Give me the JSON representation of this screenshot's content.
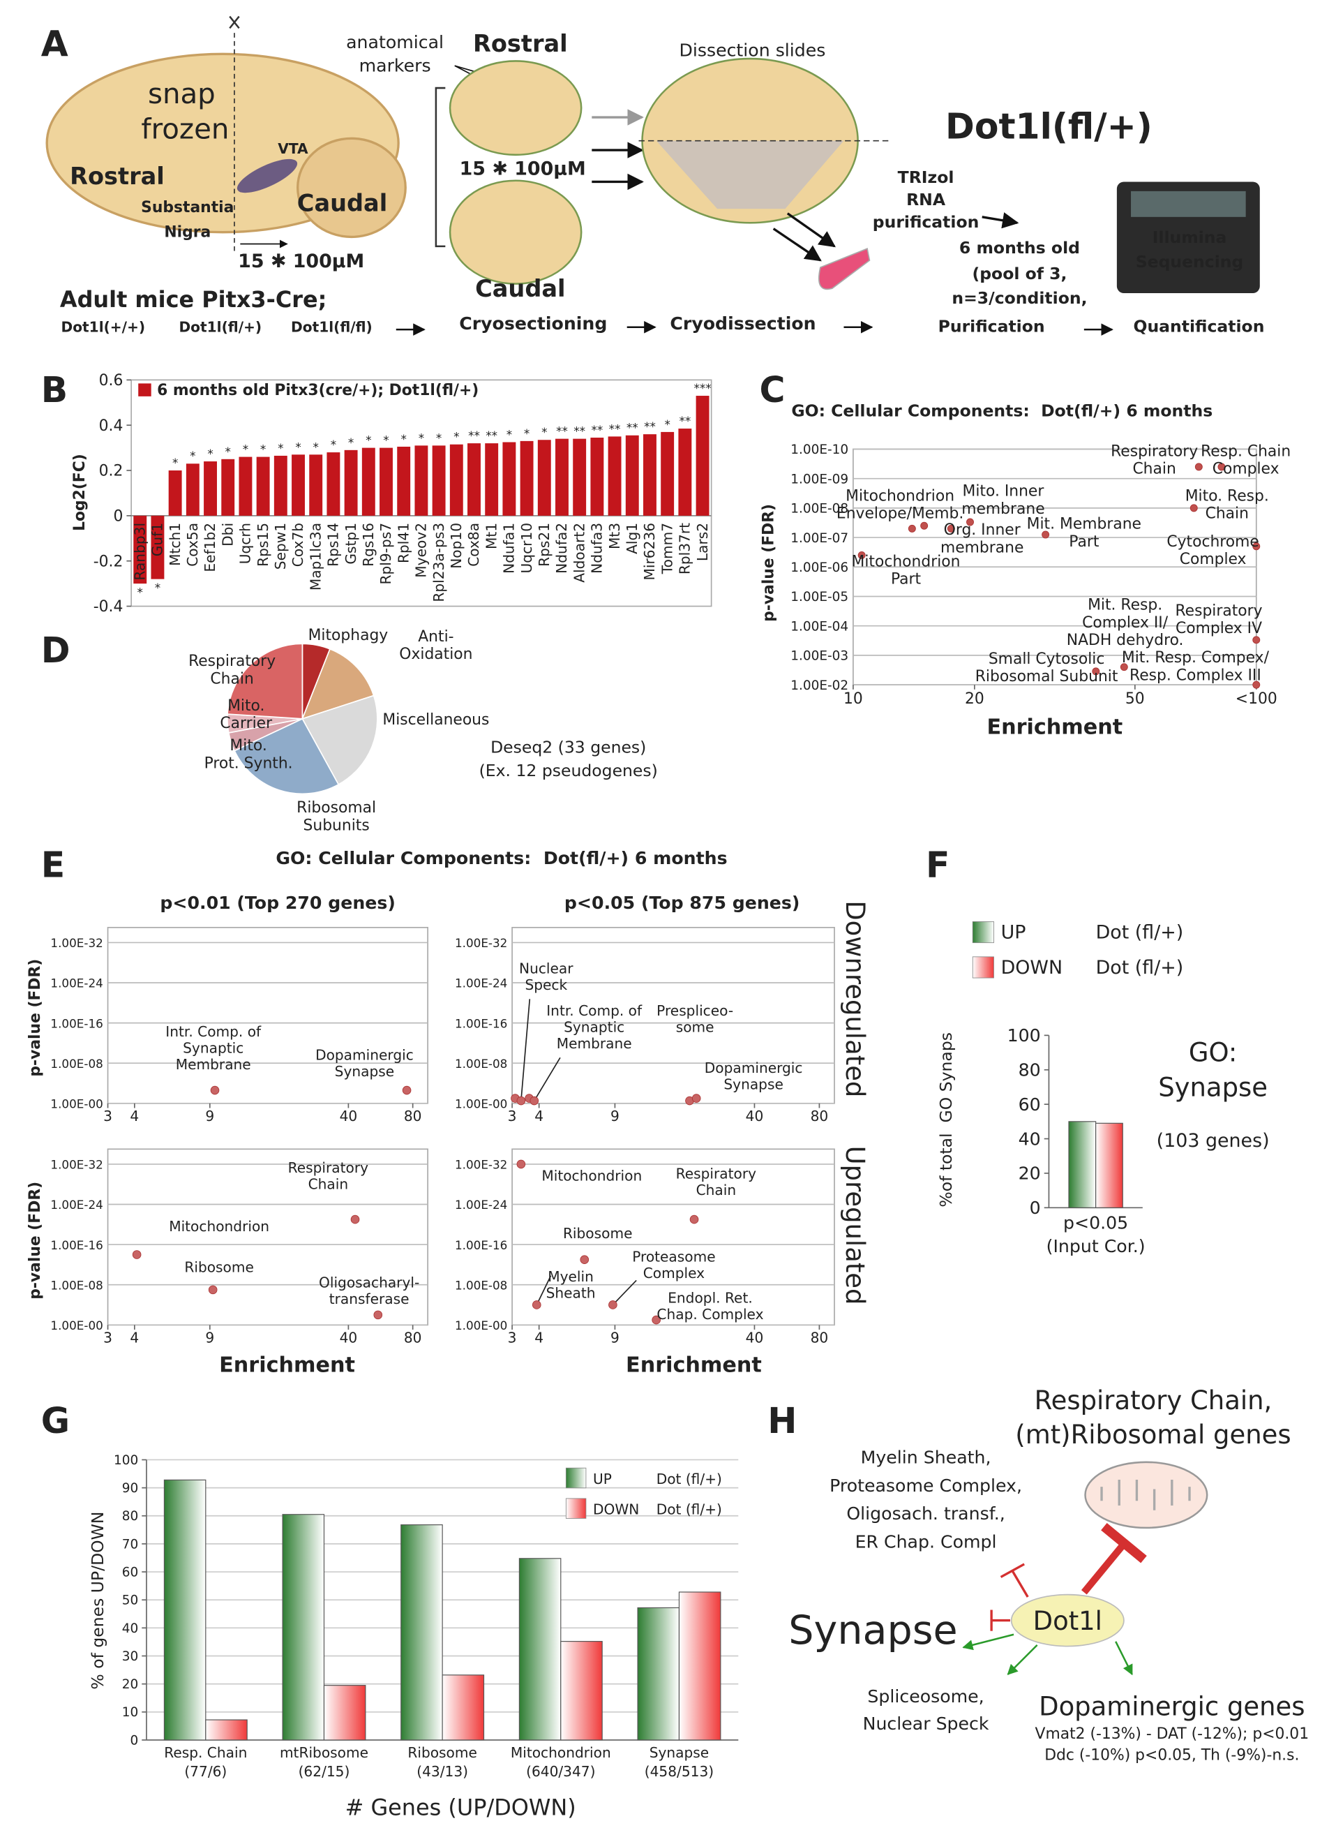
{
  "figure": {
    "panel_labels": [
      "A",
      "B",
      "C",
      "D",
      "E",
      "F",
      "G",
      "H"
    ],
    "panel_a": [
      "snap",
      "frozen",
      "Rostral",
      "VTA",
      "Caudal",
      "Substantia",
      "Nigra",
      "15 ✱ 100μM",
      "anatomical",
      "markers",
      "Rostral",
      "15 ✱ 100μM",
      "Caudal",
      "Dissection slides",
      "Dot1l(fl/+)",
      "TRIzol",
      "RNA",
      "purification",
      "6 months old",
      "(pool of 3,",
      "n=3/condition,",
      "Illumina",
      "Sequencing",
      "Adult mice Pitx3-Cre;",
      "Dot1l(+/+)",
      "Dot1l(fl/+)",
      "Dot1l(fl/fl)",
      "Cryosectioning",
      "Cryodissection",
      "Purification",
      "Quantification"
    ],
    "panel_e": {
      "title": "GO: Cellular Components:  Dot(fl/+) 6 months",
      "column_heads": [
        "p<0.01 (Top 270 genes)",
        "p<0.05 (Top 875 genes)"
      ],
      "row_labels": [
        "Downregulated",
        "Upregulated"
      ]
    },
    "panel_f": [
      "GO:",
      "Synapse",
      "(103 genes)"
    ],
    "panel_h": [
      "Respiratory Chain,",
      "(mt)Ribosomal genes",
      "Myelin Sheath,",
      "Proteasome Complex,",
      "Oligosach. transf.,",
      "ER Chap. Compl",
      "Dot1l",
      "Synapse",
      "Spliceosome,",
      "Nuclear Speck",
      "Dopaminergic genes",
      "Vmat2 (-13%) - DAT (-12%); p<0.01",
      "Ddc (-10%) p<0.05, Th (-9%)-n.s."
    ]
  },
  "chart_data": [
    {
      "type": "bar",
      "ylabel": "Log2(FC)",
      "categories": [
        "Ranbp3l",
        "Guf1",
        "Mtch1",
        "Cox5a",
        "Eef1b2",
        "Dbi",
        "Uqcrh",
        "Rps15",
        "Sepw1",
        "Cox7b",
        "Map1lc3a",
        "Rps14",
        "Gstp1",
        "Rgs16",
        "Rpl9-ps7",
        "Rpl41",
        "Myeov2",
        "Rpl23a-ps3",
        "Nop10",
        "Cox8a",
        "Mt1",
        "Ndufa1",
        "Uqcr10",
        "Rps21",
        "Ndufa2",
        "Aldoart2",
        "Ndufa3",
        "Mt3",
        "Alg1",
        "Mir6236",
        "Tomm7",
        "Rpl37rt",
        "Lars2"
      ],
      "series": [
        {
          "name": "6 months old Pitx3(cre/+); Dot1l(fl/+)",
          "color": "#c3161c",
          "values": [
            -0.3,
            -0.28,
            0.2,
            0.23,
            0.24,
            0.25,
            0.26,
            0.26,
            0.265,
            0.27,
            0.27,
            0.28,
            0.29,
            0.3,
            0.3,
            0.305,
            0.31,
            0.31,
            0.315,
            0.32,
            0.32,
            0.325,
            0.33,
            0.335,
            0.34,
            0.34,
            0.345,
            0.35,
            0.355,
            0.36,
            0.37,
            0.385,
            0.53
          ]
        }
      ],
      "significance": [
        "*",
        "*",
        "*",
        "*",
        "*",
        "*",
        "*",
        "*",
        "*",
        "*",
        "*",
        "*",
        "*",
        "*",
        "*",
        "*",
        "*",
        "*",
        "*",
        "**",
        "**",
        "*",
        "*",
        "*",
        "**",
        "**",
        "**",
        "**",
        "**",
        "**",
        "*",
        "**",
        "***"
      ],
      "ylim": [
        -0.4,
        0.6
      ],
      "yticks": [
        -0.4,
        -0.2,
        0,
        0.2,
        0.4,
        0.6
      ]
    },
    {
      "type": "scatter",
      "title": "GO: Cellular Components:  Dot(fl/+) 6 months",
      "xlabel": "Enrichment",
      "ylabel": "p-value (FDR)",
      "xscale": "log",
      "yscale": "log",
      "color": "#c0504d",
      "grid": true,
      "x": [
        10.5,
        14,
        15,
        17.5,
        19.5,
        30,
        72,
        82,
        70,
        100,
        100,
        47,
        40,
        100
      ],
      "values": [
        4e-07,
        5e-08,
        4e-08,
        5e-08,
        3e-08,
        8e-08,
        4e-10,
        4e-10,
        1e-08,
        2e-07,
        0.0003,
        0.0025,
        0.0035,
        0.01
      ],
      "point_labels": [
        [
          "Mitochondrion",
          "Part"
        ],
        [
          "Mitochondrion",
          "Envelope/Memb."
        ],
        null,
        [
          "Org. Inner",
          "membrane"
        ],
        [
          "Mito. Inner",
          "membrane"
        ],
        [
          "Mit. Membrane",
          "Part"
        ],
        [
          "Respiratory",
          "Chain"
        ],
        [
          "Resp. Chain",
          "Complex"
        ],
        [
          "Mito. Resp.",
          "Chain"
        ],
        [
          "Cytochrome",
          "Complex"
        ],
        [
          "Respiratory",
          "Complex IV"
        ],
        [
          "Mit. Resp.",
          "Complex II/",
          "NADH dehydro."
        ],
        [
          "Small Cytosolic",
          "Ribosomal Subunit"
        ],
        [
          "Mit. Resp. Compex/",
          "Resp. Complex III"
        ]
      ],
      "xlim": [
        10,
        100
      ],
      "xticks": [
        10,
        20,
        50,
        {
          "value": 100,
          "label": "<100"
        }
      ],
      "ylim": [
        0.01,
        1e-10
      ],
      "yticks": [
        {
          "value": 1e-10,
          "label": "1.00E-10"
        },
        {
          "value": 1e-09,
          "label": "1.00E-09"
        },
        {
          "value": 1e-08,
          "label": "1.00E-08"
        },
        {
          "value": 1e-07,
          "label": "1.00E-07"
        },
        {
          "value": 1e-06,
          "label": "1.00E-06"
        },
        {
          "value": 1e-05,
          "label": "1.00E-05"
        },
        {
          "value": 0.0001,
          "label": "1.00E-04"
        },
        {
          "value": 0.001,
          "label": "1.00E-03"
        },
        {
          "value": 0.01,
          "label": "1.00E-02"
        }
      ]
    },
    {
      "type": "pie",
      "categories": [
        [
          "Mitophagy"
        ],
        [
          "Anti-",
          "Oxidation"
        ],
        [
          "Miscellaneous"
        ],
        [
          "Ribosomal",
          "Subunits"
        ],
        [
          "Mito.",
          "Prot. Synth."
        ],
        [
          "Mito.",
          "Carrier"
        ],
        [
          "Respiratory",
          "Chain"
        ]
      ],
      "values": [
        6,
        14,
        22,
        26,
        4,
        4,
        24
      ],
      "colors": [
        "#b52a2a",
        "#d9a87c",
        "#dadada",
        "#8fabc9",
        "#d8a2aa",
        "#e6b8be",
        "#d96464"
      ],
      "notes": [
        "Deseq2 (33 genes)",
        "(Ex. 12 pseudogenes)"
      ]
    },
    {
      "type": "scatter",
      "ylabel": "p-value (FDR)",
      "xscale": "log",
      "yscale": "log",
      "color": "#c86464",
      "grid": true,
      "x": [
        9.5,
        75
      ],
      "values": [
        0.0025,
        0.0025
      ],
      "point_labels": [
        [
          "Intr. Comp. of",
          "Synaptic",
          "Membrane"
        ],
        [
          "Dopaminergic",
          "Synapse"
        ]
      ],
      "xlim": [
        3,
        94
      ],
      "xticks": [
        3,
        4,
        9,
        40,
        80
      ],
      "ylim": [
        1,
        1e-35
      ],
      "yticks": [
        {
          "value": 1e-32,
          "label": "1.00E-32"
        },
        {
          "value": 1e-24,
          "label": "1.00E-24"
        },
        {
          "value": 1e-16,
          "label": "1.00E-16"
        },
        {
          "value": 1e-08,
          "label": "1.00E-08"
        },
        {
          "value": 1,
          "label": "1.00E-00"
        }
      ]
    },
    {
      "type": "scatter",
      "xscale": "log",
      "yscale": "log",
      "color": "#c86464",
      "grid": true,
      "x": [
        3.1,
        3.3,
        3.6,
        3.8,
        20,
        21.5
      ],
      "values": [
        0.1,
        0.3,
        0.1,
        0.3,
        0.3,
        0.1
      ],
      "point_labels": [
        null,
        [
          "Nuclear",
          "Speck"
        ],
        null,
        [
          "Intr. Comp. of",
          "Synaptic",
          "Membrane"
        ],
        [
          "Prespliceo-",
          "some"
        ],
        [
          "Dopaminergic",
          "Synapse"
        ]
      ],
      "xlim": [
        3,
        94
      ],
      "xticks": [
        3,
        4,
        9,
        40,
        80
      ],
      "ylim": [
        1,
        1e-35
      ],
      "yticks": [
        {
          "value": 1e-32,
          "label": "1.00E-32"
        },
        {
          "value": 1e-24,
          "label": "1.00E-24"
        },
        {
          "value": 1e-16,
          "label": "1.00E-16"
        },
        {
          "value": 1e-08,
          "label": "1.00E-08"
        },
        {
          "value": 1,
          "label": "1.00E-00"
        }
      ]
    },
    {
      "type": "scatter",
      "ylabel": "p-value (FDR)",
      "xlabel": "Enrichment",
      "xscale": "log",
      "yscale": "log",
      "color": "#c86464",
      "grid": true,
      "x": [
        4.1,
        9.3,
        43,
        55
      ],
      "values": [
        1e-14,
        1e-07,
        1e-21,
        0.01
      ],
      "point_labels": [
        [
          "Mitochondrion"
        ],
        [
          "Ribosome"
        ],
        [
          "Respiratory",
          "Chain"
        ],
        [
          "Oligosacharyl-",
          "transferase"
        ]
      ],
      "xlim": [
        3,
        94
      ],
      "xticks": [
        3,
        4,
        9,
        40,
        80
      ],
      "ylim": [
        1,
        1e-35
      ],
      "yticks": [
        {
          "value": 1e-32,
          "label": "1.00E-32"
        },
        {
          "value": 1e-24,
          "label": "1.00E-24"
        },
        {
          "value": 1e-16,
          "label": "1.00E-16"
        },
        {
          "value": 1e-08,
          "label": "1.00E-08"
        },
        {
          "value": 1,
          "label": "1.00E-00"
        }
      ]
    },
    {
      "type": "scatter",
      "xlabel": "Enrichment",
      "xscale": "log",
      "yscale": "log",
      "color": "#c86464",
      "grid": true,
      "x": [
        3.3,
        21,
        6.5,
        8.8,
        3.9,
        14
      ],
      "values": [
        1e-32,
        1e-21,
        1e-13,
        0.0001,
        0.0001,
        0.1
      ],
      "point_labels": [
        [
          "Mitochondrion"
        ],
        [
          "Respiratory",
          "Chain"
        ],
        [
          "Ribosome"
        ],
        [
          "Proteasome",
          "Complex"
        ],
        [
          "Myelin",
          "Sheath"
        ],
        [
          "Endopl. Ret.",
          "Chap. Complex"
        ]
      ],
      "xlim": [
        3,
        94
      ],
      "xticks": [
        3,
        4,
        9,
        40,
        80
      ],
      "ylim": [
        1,
        1e-35
      ],
      "yticks": [
        {
          "value": 1e-32,
          "label": "1.00E-32"
        },
        {
          "value": 1e-24,
          "label": "1.00E-24"
        },
        {
          "value": 1e-16,
          "label": "1.00E-16"
        },
        {
          "value": 1e-08,
          "label": "1.00E-08"
        },
        {
          "value": 1,
          "label": "1.00E-00"
        }
      ]
    },
    {
      "type": "bar",
      "ylabel": "%of total  GO Synaps",
      "legend_note": "Dot (fl/+)",
      "categories": [
        [
          "p<0.05",
          "(Input Cor.)"
        ]
      ],
      "series": [
        {
          "name": "UP",
          "color": "#2e7d32",
          "values": [
            50
          ]
        },
        {
          "name": "DOWN",
          "color": "#f03a3a",
          "values": [
            49
          ]
        }
      ],
      "ylim": [
        0,
        100
      ],
      "yticks": [
        0,
        20,
        40,
        60,
        80,
        100
      ]
    },
    {
      "type": "bar",
      "ylabel": "% of genes UP/DOWN",
      "xlabel": "# Genes (UP/DOWN)",
      "legend_note": "Dot (fl/+)",
      "grid": true,
      "categories": [
        [
          "Resp. Chain",
          "(77/6)"
        ],
        [
          "mtRibosome",
          "(62/15)"
        ],
        [
          "Ribosome",
          "(43/13)"
        ],
        [
          "Mitochondrion",
          "(640/347)"
        ],
        [
          "Synapse",
          "(458/513)"
        ]
      ],
      "series": [
        {
          "name": "UP",
          "color": "#2e7d32",
          "values": [
            92.8,
            80.5,
            76.8,
            64.8,
            47.2
          ]
        },
        {
          "name": "DOWN",
          "color": "#f03a3a",
          "values": [
            7.2,
            19.5,
            23.2,
            35.2,
            52.8
          ]
        }
      ],
      "ylim": [
        0,
        100
      ],
      "yticks": [
        0,
        10,
        20,
        30,
        40,
        50,
        60,
        70,
        80,
        90,
        100
      ]
    }
  ]
}
